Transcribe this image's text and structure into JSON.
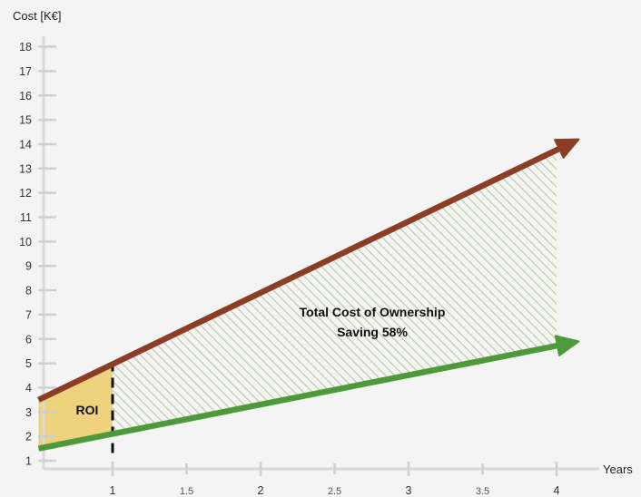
{
  "chart_data": {
    "type": "line",
    "ylabel": "Cost [K€]",
    "xlabel": "Years",
    "ylim": [
      0.5,
      18.5
    ],
    "xlim": [
      0.5,
      4.3
    ],
    "y_ticks": [
      1,
      2,
      3,
      4,
      5,
      6,
      7,
      8,
      9,
      10,
      11,
      12,
      13,
      14,
      15,
      16,
      17,
      18
    ],
    "x_ticks": [
      1,
      1.5,
      2,
      2.5,
      3,
      3.5,
      4
    ],
    "x_tick_labels": [
      "1",
      "1.5",
      "2",
      "2.5",
      "3",
      "3.5",
      "4"
    ],
    "grid": false,
    "series": [
      {
        "name": "",
        "color": "#8b3e25",
        "x": [
          0.5,
          4.15
        ],
        "y": [
          3.5,
          14.2
        ]
      },
      {
        "name": "",
        "color": "#4e9a3a",
        "x": [
          0.5,
          4.15
        ],
        "y": [
          1.5,
          5.9
        ]
      }
    ],
    "roi_marker_x": 1,
    "roi_region": {
      "color": "#eed27e",
      "x": [
        0.5,
        1
      ]
    },
    "saving_region": {
      "color": "#b9c99a",
      "x": [
        1,
        4
      ]
    },
    "annotations": {
      "roi": "ROI",
      "tco_line1": "Total Cost of Ownership",
      "tco_line2": "Saving 58%"
    }
  }
}
